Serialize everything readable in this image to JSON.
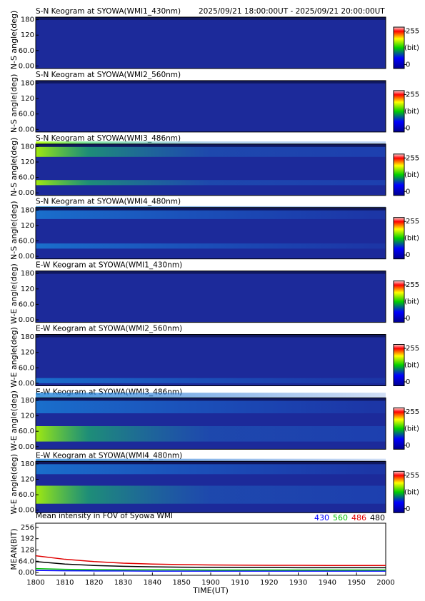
{
  "chart_data": [
    {
      "type": "keogram",
      "title": "S-N Keogram at SYOWA(WMI1_430nm)",
      "subtitle": "2025/09/21 18:00:00UT - 2025/09/21 20:00:00UT",
      "ylabel": "N-S angle(deg)",
      "ylim": [
        -10,
        190
      ],
      "yticks": [
        180,
        120,
        {
          "value": 60,
          "label": "60.0"
        },
        {
          "value": 0,
          "label": "0.00"
        }
      ],
      "clim": [
        -30,
        285
      ],
      "cticks": [
        255,
        0
      ],
      "clabel": "(bit)"
    },
    {
      "type": "keogram",
      "title": "S-N Keogram at SYOWA(WMI2_560nm)",
      "ylabel": "N-S angle(deg)",
      "ylim": [
        -10,
        190
      ],
      "yticks": [
        180,
        120,
        {
          "value": 60,
          "label": "60.0"
        },
        {
          "value": 0,
          "label": "0.00"
        }
      ],
      "clim": [
        -30,
        285
      ],
      "cticks": [
        255,
        0
      ],
      "clabel": "(bit)"
    },
    {
      "type": "keogram",
      "title": "S-N Keogram at SYOWA(WMI3_486nm)",
      "ylabel": "N-S angle(deg)",
      "ylim": [
        -10,
        190
      ],
      "yticks": [
        180,
        120,
        {
          "value": 60,
          "label": "60.0"
        },
        {
          "value": 0,
          "label": "0.00"
        }
      ],
      "clim": [
        -30,
        285
      ],
      "cticks": [
        255,
        0
      ],
      "clabel": "(bit)"
    },
    {
      "type": "keogram",
      "title": "S-N Keogram at SYOWA(WMI4_480nm)",
      "ylabel": "N-S angle(deg)",
      "ylim": [
        -10,
        190
      ],
      "yticks": [
        180,
        120,
        {
          "value": 60,
          "label": "60.0"
        },
        {
          "value": 0,
          "label": "0.00"
        }
      ],
      "clim": [
        -30,
        285
      ],
      "cticks": [
        255,
        0
      ],
      "clabel": "(bit)"
    },
    {
      "type": "keogram",
      "title": "E-W Keogram at SYOWA(WMI1_430nm)",
      "ylabel": "W-E angle(deg)",
      "ylim": [
        -10,
        190
      ],
      "yticks": [
        180,
        120,
        {
          "value": 60,
          "label": "60.0"
        },
        {
          "value": 0,
          "label": "0.00"
        }
      ],
      "clim": [
        -30,
        285
      ],
      "cticks": [
        255,
        0
      ],
      "clabel": "(bit)"
    },
    {
      "type": "keogram",
      "title": "E-W Keogram at SYOWA(WMI2_560nm)",
      "ylabel": "W-E angle(deg)",
      "ylim": [
        -10,
        190
      ],
      "yticks": [
        180,
        120,
        {
          "value": 60,
          "label": "60.0"
        },
        {
          "value": 0,
          "label": "0.00"
        }
      ],
      "clim": [
        -30,
        285
      ],
      "cticks": [
        255,
        0
      ],
      "clabel": "(bit)"
    },
    {
      "type": "keogram",
      "title": "E-W Keogram at SYOWA(WMI3_486nm)",
      "ylabel": "W-E angle(deg)",
      "ylim": [
        -10,
        190
      ],
      "yticks": [
        180,
        120,
        {
          "value": 60,
          "label": "60.0"
        },
        {
          "value": 0,
          "label": "0.00"
        }
      ],
      "clim": [
        -30,
        285
      ],
      "cticks": [
        255,
        0
      ],
      "clabel": "(bit)"
    },
    {
      "type": "keogram",
      "title": "E-W Keogram at SYOWA(WMI4_480nm)",
      "ylabel": "W-E angle(deg)",
      "ylim": [
        -10,
        190
      ],
      "yticks": [
        180,
        120,
        {
          "value": 60,
          "label": "60.0"
        },
        {
          "value": 0,
          "label": "0.00"
        }
      ],
      "clim": [
        -30,
        285
      ],
      "cticks": [
        255,
        0
      ],
      "clabel": "(bit)"
    },
    {
      "type": "line",
      "title": "Mean intensity in FOV of Syowa WMI",
      "ylabel": "MEAN(BIT)",
      "xlabel": "TIME(UT)",
      "x": [
        0,
        10,
        20,
        30,
        40,
        50,
        60,
        70,
        80,
        90,
        100,
        110,
        120
      ],
      "xlim": [
        0,
        120
      ],
      "xticks": [
        {
          "value": 0,
          "label": "1800"
        },
        {
          "value": 10,
          "label": "1810"
        },
        {
          "value": 20,
          "label": "1820"
        },
        {
          "value": 30,
          "label": "1830"
        },
        {
          "value": 40,
          "label": "1840"
        },
        {
          "value": 50,
          "label": "1850"
        },
        {
          "value": 60,
          "label": "1900"
        },
        {
          "value": 70,
          "label": "1910"
        },
        {
          "value": 80,
          "label": "1920"
        },
        {
          "value": 90,
          "label": "1930"
        },
        {
          "value": 100,
          "label": "1940"
        },
        {
          "value": 110,
          "label": "1950"
        },
        {
          "value": 120,
          "label": "2000"
        }
      ],
      "ylim": [
        -16,
        280
      ],
      "yticks": [
        256,
        192,
        128,
        {
          "value": 64,
          "label": "64.0"
        },
        {
          "value": 0,
          "label": "0.00"
        }
      ],
      "series": [
        {
          "name": "430",
          "color": "#0000ff",
          "values": [
            12,
            10,
            9,
            9,
            8,
            8,
            8,
            8,
            8,
            8,
            8,
            8,
            8
          ]
        },
        {
          "name": "560",
          "color": "#00c000",
          "values": [
            22,
            18,
            16,
            15,
            15,
            15,
            14,
            14,
            14,
            14,
            14,
            14,
            14
          ]
        },
        {
          "name": "486",
          "color": "#e00000",
          "values": [
            95,
            75,
            62,
            53,
            48,
            45,
            43,
            42,
            41,
            41,
            40,
            40,
            40
          ]
        },
        {
          "name": "480",
          "color": "#000000",
          "values": [
            62,
            48,
            40,
            35,
            32,
            30,
            29,
            28,
            28,
            27,
            27,
            27,
            27
          ]
        }
      ]
    }
  ]
}
